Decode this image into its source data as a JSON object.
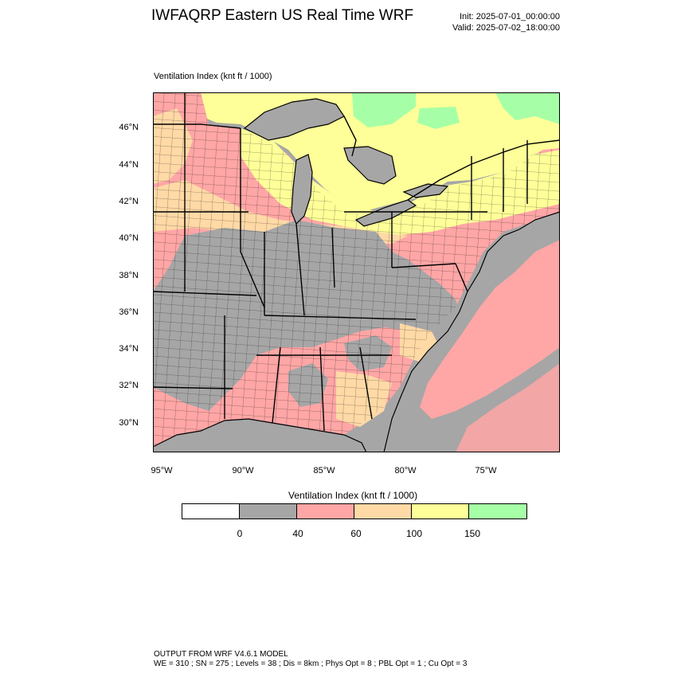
{
  "header": {
    "title": "IWFAQRP Eastern US Real Time WRF",
    "init": "Init: 2025-07-01_00:00:00",
    "valid": "Valid: 2025-07-02_18:00:00"
  },
  "plot_label": "Ventilation Index   (knt ft / 1000)",
  "map": {
    "latitude_labels": [
      "46°N",
      "44°N",
      "42°N",
      "40°N",
      "38°N",
      "36°N",
      "34°N",
      "32°N",
      "30°N"
    ],
    "longitude_labels": [
      "95°W",
      "90°W",
      "85°W",
      "80°W",
      "75°W"
    ],
    "colors": {
      "water": "#a6a6a6",
      "low": "#a6a6a6",
      "pink": "#ffa6a6",
      "tan": "#ffd9a6",
      "yellow": "#ffff99",
      "green": "#a6ffa6",
      "outline": "#000000"
    }
  },
  "legend": {
    "title": "Ventilation Index  (knt ft / 1000)",
    "colors": [
      "#ffffff",
      "#a6a6a6",
      "#ffa6a6",
      "#ffd9a6",
      "#ffff99",
      "#a6ffa6"
    ],
    "ticks": [
      "0",
      "40",
      "60",
      "100",
      "150"
    ]
  },
  "footer": {
    "line1": "OUTPUT FROM WRF V4.6.1 MODEL",
    "line2": "WE = 310 ; SN = 275 ; Levels = 38 ; Dis = 8km ; Phys Opt = 8 ; PBL Opt = 1 ; Cu Opt = 3"
  }
}
